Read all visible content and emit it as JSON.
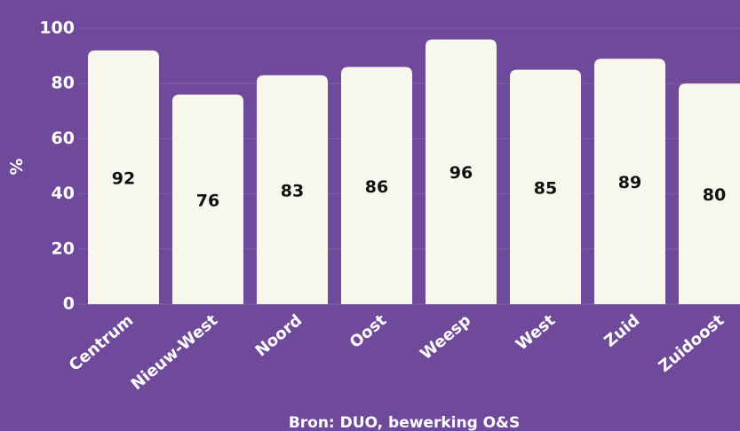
{
  "chart_data": {
    "type": "bar",
    "y_axis_label": "%",
    "source": "Bron: DUO, bewerking O&S",
    "categories": [
      "Centrum",
      "Nieuw-West",
      "Noord",
      "Oost",
      "Weesp",
      "West",
      "Zuid",
      "Zuidoost"
    ],
    "values": [
      92,
      76,
      83,
      86,
      96,
      85,
      89,
      80
    ],
    "color": "#f7f7ee",
    "ylim": [
      0,
      100
    ],
    "yticks": [
      0,
      20,
      40,
      60,
      80,
      100
    ],
    "grid": true
  }
}
